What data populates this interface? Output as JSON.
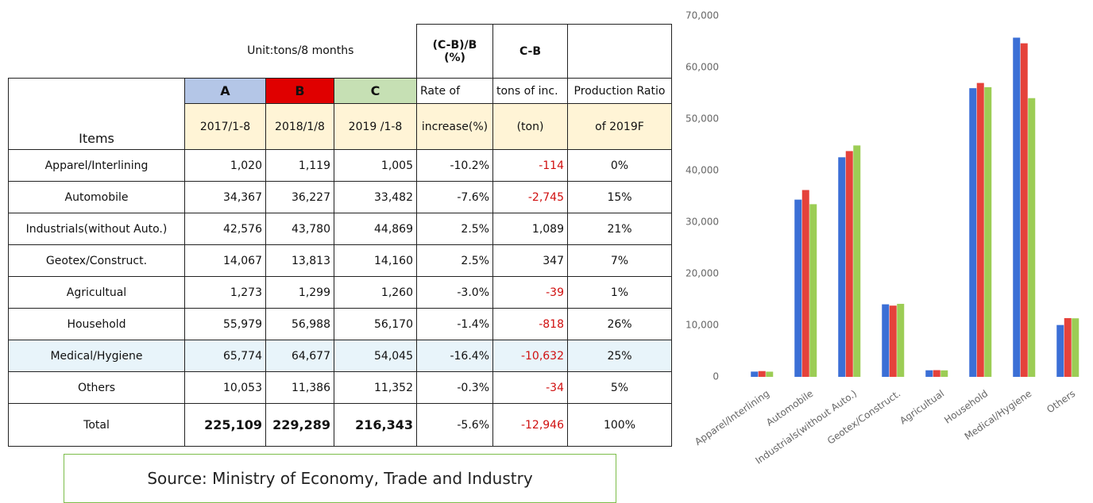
{
  "table": {
    "unit": "Unit:tons/8 months",
    "rate_formula": "(C-B)/B\n(%)",
    "diff_formula": "C-B",
    "items": "Items",
    "column_top": [
      "A",
      "B",
      "C",
      "Rate of",
      "tons of inc.",
      "Production Ratio"
    ],
    "column_bottom": [
      "2017/1-8",
      "2018/1/8",
      "2019 /1-8",
      "increase(%)",
      "(ton)",
      "of 2019F"
    ],
    "rows": [
      [
        "Apparel/Interlining",
        "1,020",
        "1,119",
        "1,005",
        "-10.2%",
        "-114",
        "0%"
      ],
      [
        "Automobile",
        "34,367",
        "36,227",
        "33,482",
        "-7.6%",
        "-2,745",
        "15%"
      ],
      [
        "Industrials(without Auto.)",
        "42,576",
        "43,780",
        "44,869",
        "2.5%",
        "1,089",
        "21%"
      ],
      [
        "Geotex/Construct.",
        "14,067",
        "13,813",
        "14,160",
        "2.5%",
        "347",
        "7%"
      ],
      [
        "Agricultual",
        "1,273",
        "1,299",
        "1,260",
        "-3.0%",
        "-39",
        "1%"
      ],
      [
        "Household",
        "55,979",
        "56,988",
        "56,170",
        "-1.4%",
        "-818",
        "26%"
      ],
      [
        "Medical/Hygiene",
        "65,774",
        "64,677",
        "54,045",
        "-16.4%",
        "-10,632",
        "25%"
      ],
      [
        "Others",
        "10,053",
        "11,386",
        "11,352",
        "-0.3%",
        "-34",
        "5%"
      ],
      [
        "Total",
        "225,109",
        "229,289",
        "216,343",
        "-5.6%",
        "-12,946",
        "100%"
      ]
    ]
  },
  "source": "Source: Ministry of Economy, Trade and Industry",
  "chart_data": {
    "type": "bar",
    "categories": [
      "Apparel/Interlining",
      "Automobile",
      "Industrials(without Auto.)",
      "Geotex/Construct.",
      "Agricultual",
      "Household",
      "Medical/Hygiene",
      "Others"
    ],
    "series": [
      {
        "color": "#3b6fd6",
        "values": [
          1020,
          34367,
          42576,
          14067,
          1273,
          55979,
          65774,
          10053
        ]
      },
      {
        "color": "#e5423b",
        "values": [
          1119,
          36227,
          43780,
          13813,
          1299,
          56988,
          64677,
          11386
        ]
      },
      {
        "color": "#9ccd55",
        "values": [
          1005,
          33482,
          44869,
          14160,
          1260,
          56170,
          54045,
          11352
        ]
      }
    ],
    "ylim": [
      0,
      70000
    ],
    "yticks": [
      0,
      {
        "value": 10000,
        "label": "10,000"
      },
      {
        "value": 20000,
        "label": "20,000"
      },
      {
        "value": 30000,
        "label": "30,000"
      },
      {
        "value": 40000,
        "label": "40,000"
      },
      {
        "value": 50000,
        "label": "50,000"
      },
      {
        "value": 60000,
        "label": "60,000"
      },
      {
        "value": 70000,
        "label": "70,000"
      }
    ]
  }
}
